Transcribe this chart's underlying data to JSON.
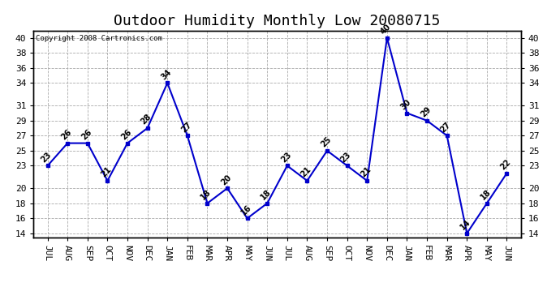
{
  "title": "Outdoor Humidity Monthly Low 20080715",
  "copyright_text": "Copyright 2008 Cartronics.com",
  "categories": [
    "JUL",
    "AUG",
    "SEP",
    "OCT",
    "NOV",
    "DEC",
    "JAN",
    "FEB",
    "MAR",
    "APR",
    "MAY",
    "JUN",
    "JUL",
    "AUG",
    "SEP",
    "OCT",
    "NOV",
    "DEC",
    "JAN",
    "FEB",
    "MAR",
    "APR",
    "MAY",
    "JUN"
  ],
  "values": [
    23,
    26,
    26,
    21,
    26,
    28,
    34,
    27,
    18,
    20,
    16,
    18,
    23,
    21,
    25,
    23,
    21,
    40,
    30,
    29,
    27,
    14,
    18,
    22
  ],
  "line_color": "#0000cc",
  "marker_color": "#0000cc",
  "bg_color": "#ffffff",
  "plot_bg_color": "#ffffff",
  "grid_color": "#aaaaaa",
  "ylim_min": 13.5,
  "ylim_max": 41,
  "yticks": [
    14,
    16,
    18,
    20,
    23,
    25,
    27,
    29,
    31,
    34,
    36,
    38,
    40
  ],
  "title_fontsize": 13,
  "tick_fontsize": 8,
  "label_fontsize": 7,
  "annotation_rotation": 45
}
